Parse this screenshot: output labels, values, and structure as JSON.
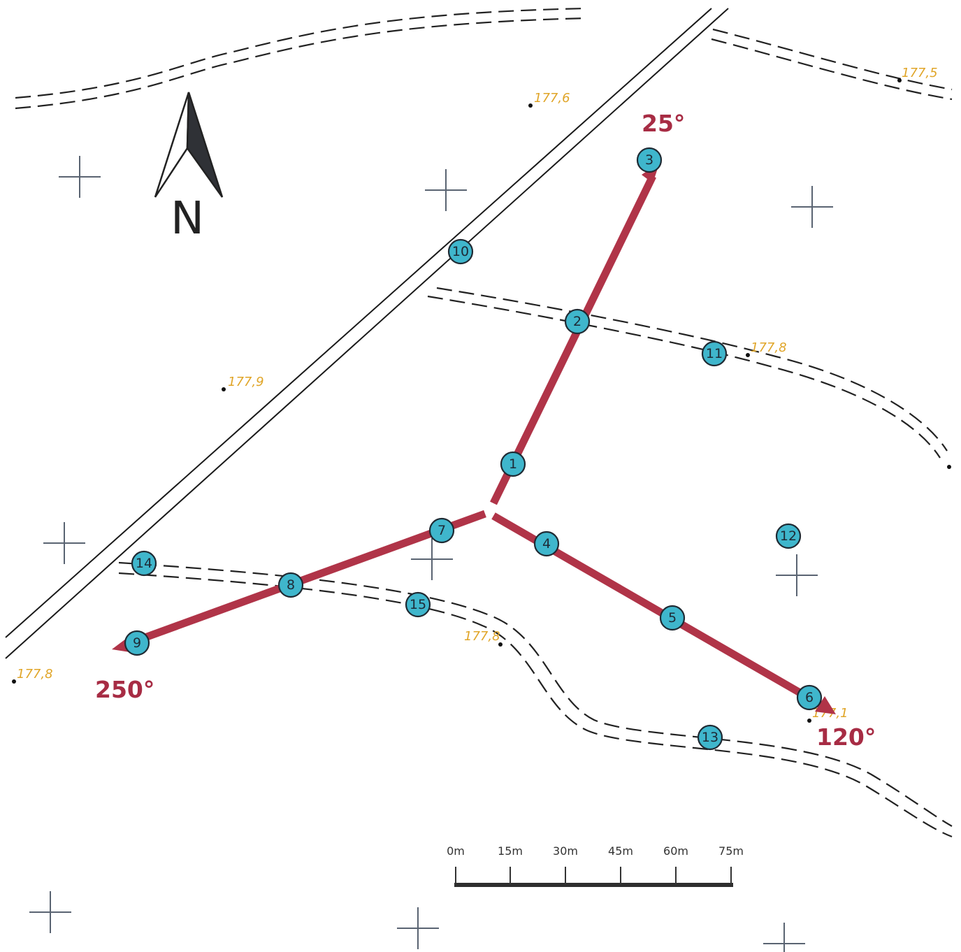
{
  "north": {
    "letter": "N"
  },
  "bearings": [
    "25°",
    "120°",
    "250°"
  ],
  "elevations": [
    "177,6",
    "177,5",
    "177,8",
    "177,9",
    "177,8",
    "177,8",
    "177,1"
  ],
  "points": [
    {
      "label": "1"
    },
    {
      "label": "2"
    },
    {
      "label": "3"
    },
    {
      "label": "4"
    },
    {
      "label": "5"
    },
    {
      "label": "6"
    },
    {
      "label": "7"
    },
    {
      "label": "8"
    },
    {
      "label": "9"
    },
    {
      "label": "10"
    },
    {
      "label": "11"
    },
    {
      "label": "12"
    },
    {
      "label": "13"
    },
    {
      "label": "14"
    },
    {
      "label": "15"
    }
  ],
  "scale": {
    "labels": [
      "0m",
      "15m",
      "30m",
      "45m",
      "60m",
      "75m"
    ]
  },
  "colors": {
    "route": "#b03448",
    "marker": "#3fb6cc",
    "elevation": "#e0a528",
    "bearing": "#a72c44"
  }
}
